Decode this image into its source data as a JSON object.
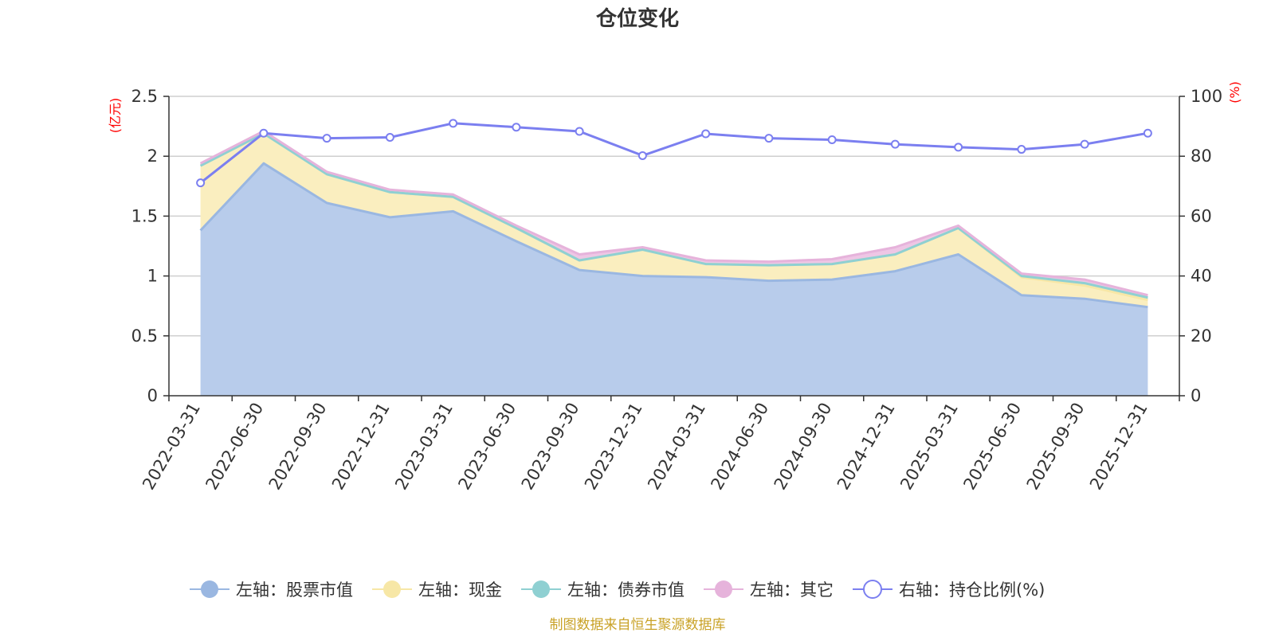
{
  "chart_data": {
    "type": "area",
    "title": "仓位变化",
    "left_axis": {
      "unit": "(亿元)",
      "range": [
        0,
        2.5
      ],
      "ticks": [
        "0",
        "0.5",
        "1",
        "1.5",
        "2",
        "2.5"
      ]
    },
    "right_axis": {
      "unit": "(%)",
      "range": [
        0,
        100
      ],
      "ticks": [
        "0",
        "20",
        "40",
        "60",
        "80",
        "100"
      ]
    },
    "grid": true,
    "legend_position": "bottom",
    "categories": [
      "2022-03-31",
      "2022-06-30",
      "2022-09-30",
      "2022-12-31",
      "2023-03-31",
      "2023-06-30",
      "2023-09-30",
      "2023-12-31",
      "2024-03-31",
      "2024-06-30",
      "2024-09-30",
      "2024-12-31",
      "2025-03-31",
      "2025-06-30",
      "2025-09-30",
      "2025-12-31"
    ],
    "series": [
      {
        "name": "左轴：股票市值",
        "axis": "left",
        "color": "#9ab7e1",
        "fill": "#b8cceb",
        "values": [
          1.38,
          1.94,
          1.61,
          1.49,
          1.54,
          1.29,
          1.05,
          1.0,
          0.99,
          0.96,
          0.97,
          1.04,
          1.18,
          0.84,
          0.81,
          0.74
        ]
      },
      {
        "name": "左轴：现金",
        "axis": "left",
        "color": "#f7e7a6",
        "fill": "#faeebf",
        "values": [
          0.54,
          0.25,
          0.24,
          0.21,
          0.12,
          0.11,
          0.08,
          0.22,
          0.11,
          0.13,
          0.13,
          0.14,
          0.22,
          0.15,
          0.11,
          0.06
        ]
      },
      {
        "name": "左轴：债券市值",
        "axis": "left",
        "color": "#8fd0d2",
        "fill": "#a9dcdd",
        "values": [
          0,
          0,
          0,
          0,
          0,
          0,
          0,
          0,
          0,
          0,
          0,
          0,
          0,
          0.01,
          0.02,
          0.02
        ]
      },
      {
        "name": "左轴：其它",
        "axis": "left",
        "color": "#e6b3db",
        "fill": "#eec6e5",
        "values": [
          0.02,
          0.02,
          0.02,
          0.02,
          0.02,
          0.02,
          0.05,
          0.02,
          0.03,
          0.03,
          0.04,
          0.06,
          0.02,
          0.02,
          0.03,
          0.02
        ]
      },
      {
        "name": "右轴：持仓比例(%)",
        "axis": "right",
        "color": "#7b7ff0",
        "values": [
          71.1,
          87.7,
          86.0,
          86.3,
          91.0,
          89.7,
          88.3,
          80.2,
          87.5,
          86.0,
          85.5,
          84.0,
          83.0,
          82.3,
          84.0,
          87.7
        ]
      }
    ],
    "source": "制图数据来自恒生聚源数据库"
  }
}
